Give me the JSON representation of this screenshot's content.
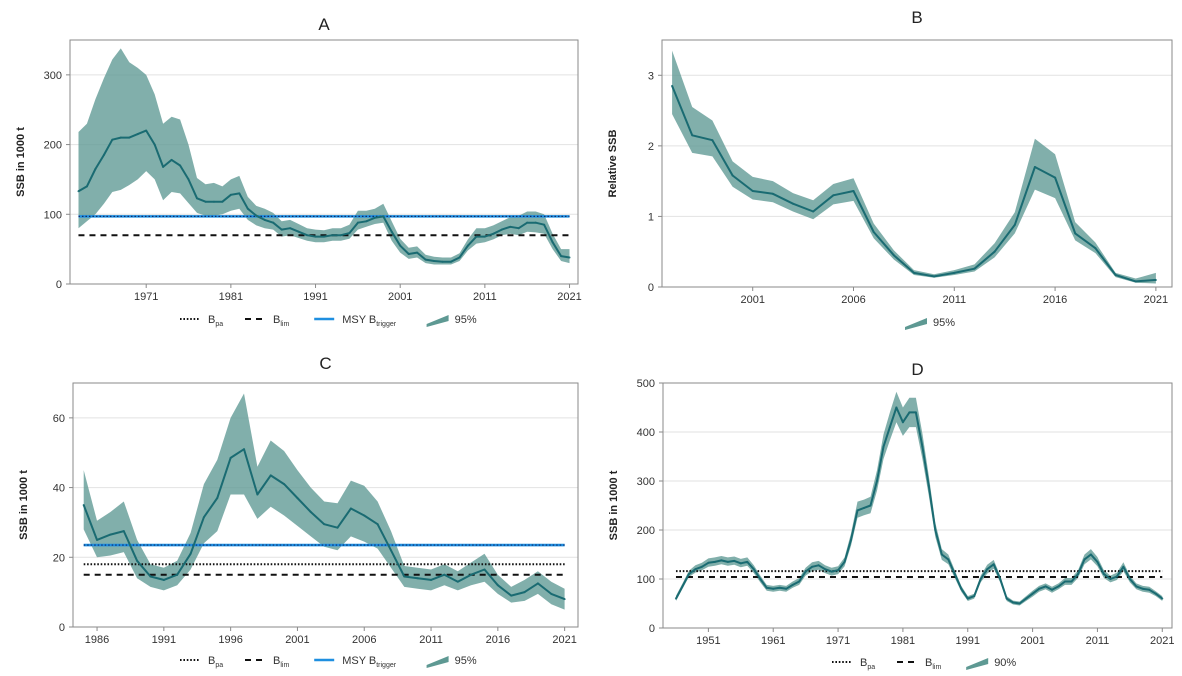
{
  "colors": {
    "line": "#1a6b72",
    "band": "#5e9993",
    "msy": "#1f8fe0",
    "ref": "#111111",
    "frame": "#8a8a8a",
    "grid": "#e2e2e2"
  },
  "chart_data": [
    {
      "id": "A",
      "type": "line",
      "title": "A",
      "ylabel": "SSB in 1000 t",
      "xlim": [
        1962,
        2022
      ],
      "ylim": [
        0,
        350
      ],
      "xticks": [
        1971,
        1981,
        1991,
        2001,
        2011,
        2021
      ],
      "yticks": [
        0,
        100,
        200,
        300
      ],
      "series": [
        {
          "x": [
            1963,
            1964,
            1965,
            1966,
            1967,
            1968,
            1969,
            1970,
            1971,
            1972,
            1973,
            1974,
            1975,
            1976,
            1977,
            1978,
            1979,
            1980,
            1981,
            1982,
            1983,
            1984,
            1985,
            1986,
            1987,
            1988,
            1989,
            1990,
            1991,
            1992,
            1993,
            1994,
            1995,
            1996,
            1997,
            1998,
            1999,
            2000,
            2001,
            2002,
            2003,
            2004,
            2005,
            2006,
            2007,
            2008,
            2009,
            2010,
            2011,
            2012,
            2013,
            2014,
            2015,
            2016,
            2017,
            2018,
            2019,
            2020,
            2021
          ],
          "y": [
            133,
            140,
            165,
            185,
            207,
            210,
            210,
            215,
            220,
            200,
            168,
            178,
            170,
            150,
            123,
            118,
            118,
            118,
            128,
            130,
            108,
            98,
            92,
            88,
            78,
            80,
            75,
            70,
            68,
            68,
            70,
            70,
            73,
            88,
            90,
            95,
            97,
            75,
            55,
            43,
            45,
            35,
            33,
            32,
            32,
            38,
            55,
            68,
            68,
            72,
            78,
            82,
            80,
            88,
            88,
            85,
            60,
            40,
            38
          ],
          "lower": [
            80,
            90,
            100,
            115,
            132,
            135,
            142,
            150,
            162,
            150,
            120,
            132,
            130,
            116,
            102,
            98,
            98,
            100,
            105,
            108,
            92,
            84,
            80,
            78,
            68,
            70,
            66,
            62,
            60,
            60,
            62,
            62,
            65,
            78,
            82,
            86,
            88,
            62,
            45,
            36,
            38,
            30,
            28,
            28,
            28,
            33,
            48,
            58,
            60,
            64,
            70,
            72,
            70,
            75,
            74,
            72,
            50,
            33,
            30
          ],
          "upper": [
            218,
            230,
            265,
            295,
            322,
            338,
            318,
            310,
            300,
            272,
            230,
            240,
            236,
            200,
            152,
            143,
            145,
            140,
            150,
            155,
            125,
            112,
            108,
            102,
            90,
            92,
            86,
            80,
            78,
            77,
            80,
            80,
            85,
            105,
            105,
            108,
            115,
            90,
            65,
            52,
            54,
            42,
            39,
            38,
            38,
            44,
            64,
            80,
            80,
            84,
            90,
            96,
            98,
            104,
            104,
            100,
            72,
            50,
            50
          ]
        }
      ],
      "ref_lines": [
        {
          "name": "MSY Btrigger",
          "value": 97,
          "style": "msy"
        },
        {
          "name": "Blim",
          "value": 70,
          "style": "dashed"
        }
      ],
      "legend": [
        {
          "style": "dotted",
          "base": "B",
          "sub": "pa"
        },
        {
          "style": "dashed",
          "base": "B",
          "sub": "lim"
        },
        {
          "style": "msy",
          "base": "MSY B",
          "sub": "trigger"
        },
        {
          "style": "band",
          "base": "95%",
          "sub": ""
        }
      ]
    },
    {
      "id": "B",
      "type": "line",
      "title": "B",
      "ylabel": "Relative SSB",
      "xlim": [
        1996.5,
        2021.8
      ],
      "ylim": [
        0,
        3.5
      ],
      "xticks": [
        2001,
        2006,
        2011,
        2016,
        2021
      ],
      "yticks": [
        0,
        1,
        2,
        3
      ],
      "series": [
        {
          "x": [
            1997,
            1998,
            1999,
            2000,
            2001,
            2002,
            2003,
            2004,
            2005,
            2006,
            2007,
            2008,
            2009,
            2010,
            2011,
            2012,
            2013,
            2014,
            2015,
            2016,
            2017,
            2018,
            2019,
            2020,
            2021
          ],
          "y": [
            2.85,
            2.15,
            2.08,
            1.58,
            1.36,
            1.32,
            1.18,
            1.07,
            1.3,
            1.36,
            0.78,
            0.45,
            0.2,
            0.15,
            0.2,
            0.26,
            0.5,
            0.88,
            1.7,
            1.55,
            0.76,
            0.55,
            0.17,
            0.08,
            0.1
          ],
          "lower": [
            2.45,
            1.9,
            1.85,
            1.42,
            1.24,
            1.2,
            1.07,
            0.96,
            1.17,
            1.22,
            0.69,
            0.39,
            0.17,
            0.13,
            0.17,
            0.22,
            0.42,
            0.76,
            1.38,
            1.26,
            0.66,
            0.48,
            0.14,
            0.06,
            0.05
          ],
          "upper": [
            3.35,
            2.55,
            2.36,
            1.78,
            1.56,
            1.5,
            1.33,
            1.23,
            1.46,
            1.54,
            0.9,
            0.52,
            0.24,
            0.18,
            0.24,
            0.32,
            0.62,
            1.06,
            2.1,
            1.88,
            0.92,
            0.63,
            0.2,
            0.12,
            0.2
          ]
        }
      ],
      "ref_lines": [],
      "legend": [
        {
          "style": "band",
          "base": "95%",
          "sub": ""
        }
      ]
    },
    {
      "id": "C",
      "type": "line",
      "title": "C",
      "ylabel": "SSB in 1000 t",
      "xlim": [
        1984.2,
        2022
      ],
      "ylim": [
        0,
        70
      ],
      "xticks": [
        1986,
        1991,
        1996,
        2001,
        2006,
        2011,
        2016,
        2021
      ],
      "yticks": [
        0,
        20,
        40,
        60
      ],
      "series": [
        {
          "x": [
            1985,
            1986,
            1987,
            1988,
            1989,
            1990,
            1991,
            1992,
            1993,
            1994,
            1995,
            1996,
            1997,
            1998,
            1999,
            2000,
            2001,
            2002,
            2003,
            2004,
            2005,
            2006,
            2007,
            2008,
            2009,
            2010,
            2011,
            2012,
            2013,
            2014,
            2015,
            2016,
            2017,
            2018,
            2019,
            2020,
            2021
          ],
          "y": [
            35,
            25,
            26.5,
            27.5,
            19,
            14.5,
            13.5,
            15,
            21,
            31.5,
            37,
            48.5,
            51,
            38,
            43.5,
            41,
            37,
            33,
            29.5,
            28.5,
            34,
            32,
            29.5,
            22,
            14.5,
            14,
            13.5,
            15,
            13,
            15,
            16.5,
            12,
            9,
            10,
            12.5,
            9.5,
            8
          ],
          "lower": [
            28,
            20,
            20.5,
            21.5,
            14,
            11.5,
            10.5,
            12,
            16.5,
            24,
            27.5,
            38,
            38,
            31,
            34.5,
            32,
            29,
            26,
            23,
            22,
            26,
            24.5,
            22.5,
            17,
            11.5,
            11,
            10.5,
            12,
            10.5,
            12,
            13,
            9.5,
            7,
            7.5,
            9.5,
            6.5,
            5
          ],
          "upper": [
            45,
            30.5,
            33,
            36,
            25,
            18,
            17,
            19,
            27,
            41,
            48,
            60,
            67,
            46,
            53.5,
            50.5,
            45,
            40,
            36,
            35.5,
            42,
            40.5,
            36,
            27.5,
            17.5,
            17,
            16.5,
            18,
            16,
            18.5,
            21,
            15,
            11.5,
            13.5,
            16,
            13,
            11
          ]
        }
      ],
      "ref_lines": [
        {
          "name": "MSY Btrigger",
          "value": 23.5,
          "style": "msy"
        },
        {
          "name": "Bpa",
          "value": 18,
          "style": "dotted"
        },
        {
          "name": "Blim",
          "value": 15,
          "style": "dashed"
        }
      ],
      "legend": [
        {
          "style": "dotted",
          "base": "B",
          "sub": "pa"
        },
        {
          "style": "dashed",
          "base": "B",
          "sub": "lim"
        },
        {
          "style": "msy",
          "base": "MSY B",
          "sub": "trigger"
        },
        {
          "style": "band",
          "base": "95%",
          "sub": ""
        }
      ]
    },
    {
      "id": "D",
      "type": "line",
      "title": "D",
      "ylabel": "SSB in 1000 t",
      "xlim": [
        1944,
        2022.5
      ],
      "ylim": [
        0,
        500
      ],
      "xticks": [
        1951,
        1961,
        1971,
        1981,
        1991,
        2001,
        2011,
        2021
      ],
      "yticks": [
        0,
        100,
        200,
        300,
        400,
        500
      ],
      "series": [
        {
          "x": [
            1946,
            1947,
            1948,
            1949,
            1950,
            1951,
            1952,
            1953,
            1954,
            1955,
            1956,
            1957,
            1958,
            1959,
            1960,
            1961,
            1962,
            1963,
            1964,
            1965,
            1966,
            1967,
            1968,
            1969,
            1970,
            1971,
            1972,
            1973,
            1974,
            1975,
            1976,
            1977,
            1978,
            1979,
            1980,
            1981,
            1982,
            1983,
            1984,
            1985,
            1986,
            1987,
            1988,
            1989,
            1990,
            1991,
            1992,
            1993,
            1994,
            1995,
            1996,
            1997,
            1998,
            1999,
            2000,
            2001,
            2002,
            2003,
            2004,
            2005,
            2006,
            2007,
            2008,
            2009,
            2010,
            2011,
            2012,
            2013,
            2014,
            2015,
            2016,
            2017,
            2018,
            2019,
            2020,
            2021
          ],
          "y": [
            60,
            85,
            110,
            120,
            125,
            133,
            135,
            138,
            135,
            137,
            132,
            135,
            120,
            100,
            82,
            80,
            82,
            80,
            88,
            95,
            115,
            125,
            128,
            120,
            115,
            118,
            135,
            180,
            240,
            245,
            250,
            300,
            370,
            410,
            450,
            420,
            440,
            440,
            370,
            290,
            200,
            150,
            140,
            110,
            80,
            60,
            65,
            100,
            120,
            130,
            100,
            60,
            52,
            50,
            60,
            70,
            80,
            85,
            78,
            85,
            95,
            95,
            110,
            140,
            150,
            135,
            110,
            100,
            105,
            125,
            100,
            85,
            80,
            78,
            70,
            60
          ],
          "lower": [
            55,
            80,
            104,
            113,
            118,
            125,
            127,
            130,
            127,
            129,
            124,
            127,
            112,
            93,
            76,
            74,
            76,
            74,
            82,
            88,
            107,
            116,
            119,
            112,
            107,
            110,
            126,
            168,
            225,
            230,
            234,
            280,
            345,
            383,
            420,
            392,
            410,
            410,
            345,
            270,
            186,
            139,
            130,
            102,
            74,
            55,
            60,
            93,
            111,
            121,
            93,
            55,
            48,
            46,
            55,
            64,
            74,
            79,
            72,
            79,
            88,
            88,
            102,
            130,
            140,
            126,
            102,
            93,
            98,
            116,
            93,
            79,
            74,
            72,
            65,
            55
          ],
          "upper": [
            66,
            91,
            117,
            128,
            133,
            142,
            144,
            147,
            144,
            146,
            141,
            144,
            128,
            107,
            88,
            86,
            88,
            86,
            95,
            102,
            123,
            134,
            137,
            128,
            123,
            126,
            144,
            193,
            258,
            262,
            268,
            322,
            395,
            440,
            482,
            450,
            470,
            470,
            397,
            311,
            215,
            161,
            150,
            118,
            86,
            65,
            70,
            107,
            129,
            139,
            107,
            65,
            56,
            54,
            65,
            76,
            86,
            91,
            84,
            91,
            102,
            102,
            118,
            150,
            161,
            145,
            118,
            107,
            113,
            134,
            107,
            91,
            86,
            84,
            75,
            65
          ]
        }
      ],
      "ref_lines": [
        {
          "name": "Bpa",
          "value": 116,
          "style": "dotted"
        },
        {
          "name": "Blim",
          "value": 104,
          "style": "dashed"
        }
      ],
      "legend": [
        {
          "style": "dotted",
          "base": "B",
          "sub": "pa"
        },
        {
          "style": "dashed",
          "base": "B",
          "sub": "lim"
        },
        {
          "style": "band",
          "base": "90%",
          "sub": ""
        }
      ]
    }
  ]
}
